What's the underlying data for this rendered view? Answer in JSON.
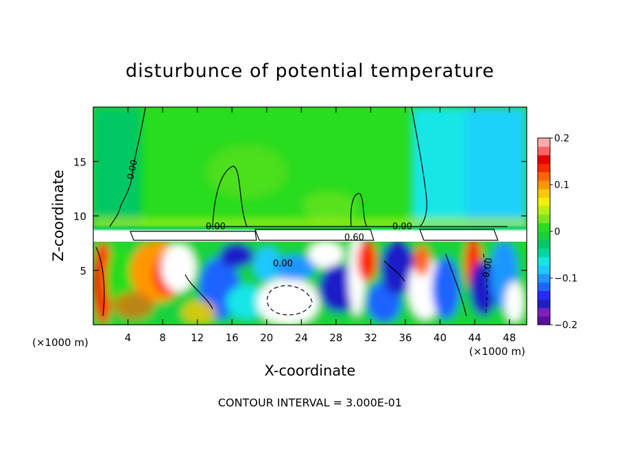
{
  "chart_data": {
    "type": "heatmap",
    "title": "disturbunce of potential temperature",
    "xlabel": "X-coordinate",
    "ylabel": "Z-coordinate",
    "x_units": "(×1000 m)",
    "y_units": "(×1000 m)",
    "xlim": [
      0,
      50
    ],
    "ylim": [
      0,
      20
    ],
    "x_ticks": [
      4,
      8,
      12,
      16,
      20,
      24,
      28,
      32,
      36,
      40,
      44,
      48
    ],
    "y_ticks": [
      5,
      10,
      15
    ],
    "colorbar": {
      "range": [
        -0.2,
        0.2
      ],
      "ticks": [
        0.2,
        0.1,
        0,
        -0.1,
        -0.2
      ],
      "tick_labels": [
        "0.2",
        "0.1",
        "0",
        "−0.1",
        "−0.2"
      ],
      "colors": [
        "#5b0f9e",
        "#7d1fbf",
        "#1e1ec8",
        "#2828ff",
        "#1e64ff",
        "#1e96ff",
        "#1ec8ff",
        "#14e6e6",
        "#00d7a0",
        "#00c864",
        "#14d23c",
        "#28dc1e",
        "#78e61e",
        "#b4f014",
        "#f0f000",
        "#ffc800",
        "#ff9600",
        "#ff6400",
        "#ff2800",
        "#e60000",
        "#ff6464",
        "#ffaaaa"
      ]
    },
    "contour_labels": [
      "0.00",
      "0.00",
      "0.60",
      "0.00",
      "0.00",
      "0.00"
    ],
    "footer": "CONTOUR INTERVAL = 3.000E-01"
  }
}
